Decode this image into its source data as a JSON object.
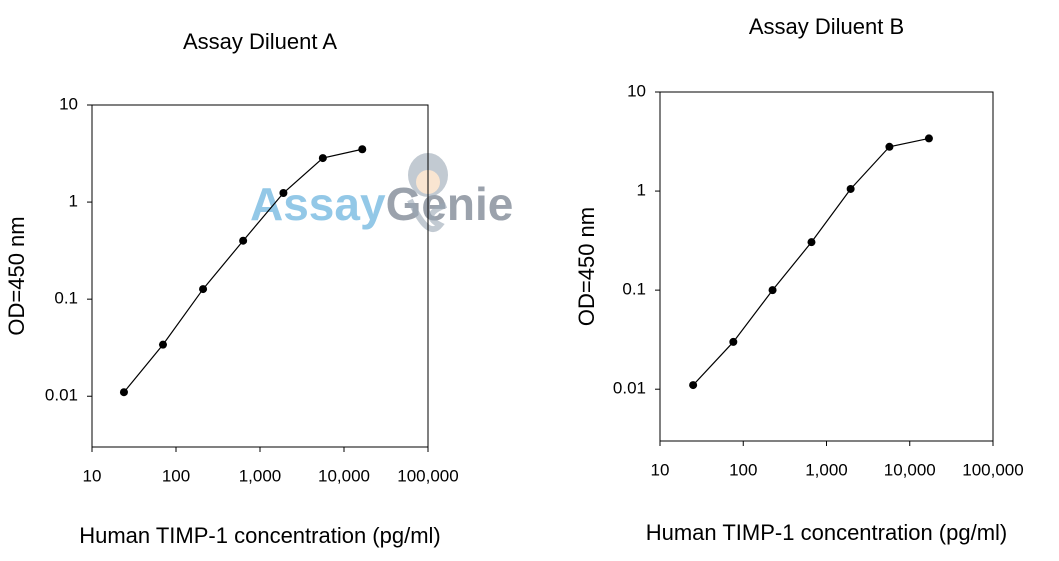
{
  "chart_data": [
    {
      "type": "line",
      "title": "Assay Diluent  A",
      "xlabel": "Human TIMP-1 concentration (pg/ml)",
      "ylabel": "OD=450 nm",
      "x": [
        24,
        70,
        210,
        630,
        1900,
        5600,
        16500
      ],
      "series": [
        {
          "color": "#000000",
          "values": [
            0.011,
            0.034,
            0.127,
            0.4,
            1.24,
            2.84,
            3.5
          ]
        }
      ],
      "xlim": [
        10,
        100000
      ],
      "ylim": [
        0.003,
        10
      ],
      "log_x": true,
      "log_y": true,
      "xticks": [
        10,
        100,
        {
          "value": 1000,
          "label": "1,000"
        },
        {
          "value": 10000,
          "label": "10,000"
        },
        {
          "value": 100000,
          "label": "100,000"
        }
      ],
      "yticks": [
        0.01,
        0.1,
        1,
        10
      ]
    },
    {
      "type": "line",
      "title": "Assay Diluent  B",
      "xlabel": "Human TIMP-1 concentration (pg/ml)",
      "ylabel": "OD=450 nm",
      "x": [
        25,
        76,
        225,
        660,
        1950,
        5700,
        17000
      ],
      "series": [
        {
          "color": "#000000",
          "values": [
            0.011,
            0.03,
            0.1,
            0.305,
            1.05,
            2.8,
            3.4
          ]
        }
      ],
      "xlim": [
        10,
        100000
      ],
      "ylim": [
        0.003,
        10
      ],
      "log_x": true,
      "log_y": true,
      "xticks": [
        10,
        100,
        {
          "value": 1000,
          "label": "1,000"
        },
        {
          "value": 10000,
          "label": "10,000"
        },
        {
          "value": 100000,
          "label": "100,000"
        }
      ],
      "yticks": [
        0.01,
        0.1,
        1,
        10
      ]
    }
  ],
  "watermark": [
    "Assay",
    "Genie"
  ]
}
